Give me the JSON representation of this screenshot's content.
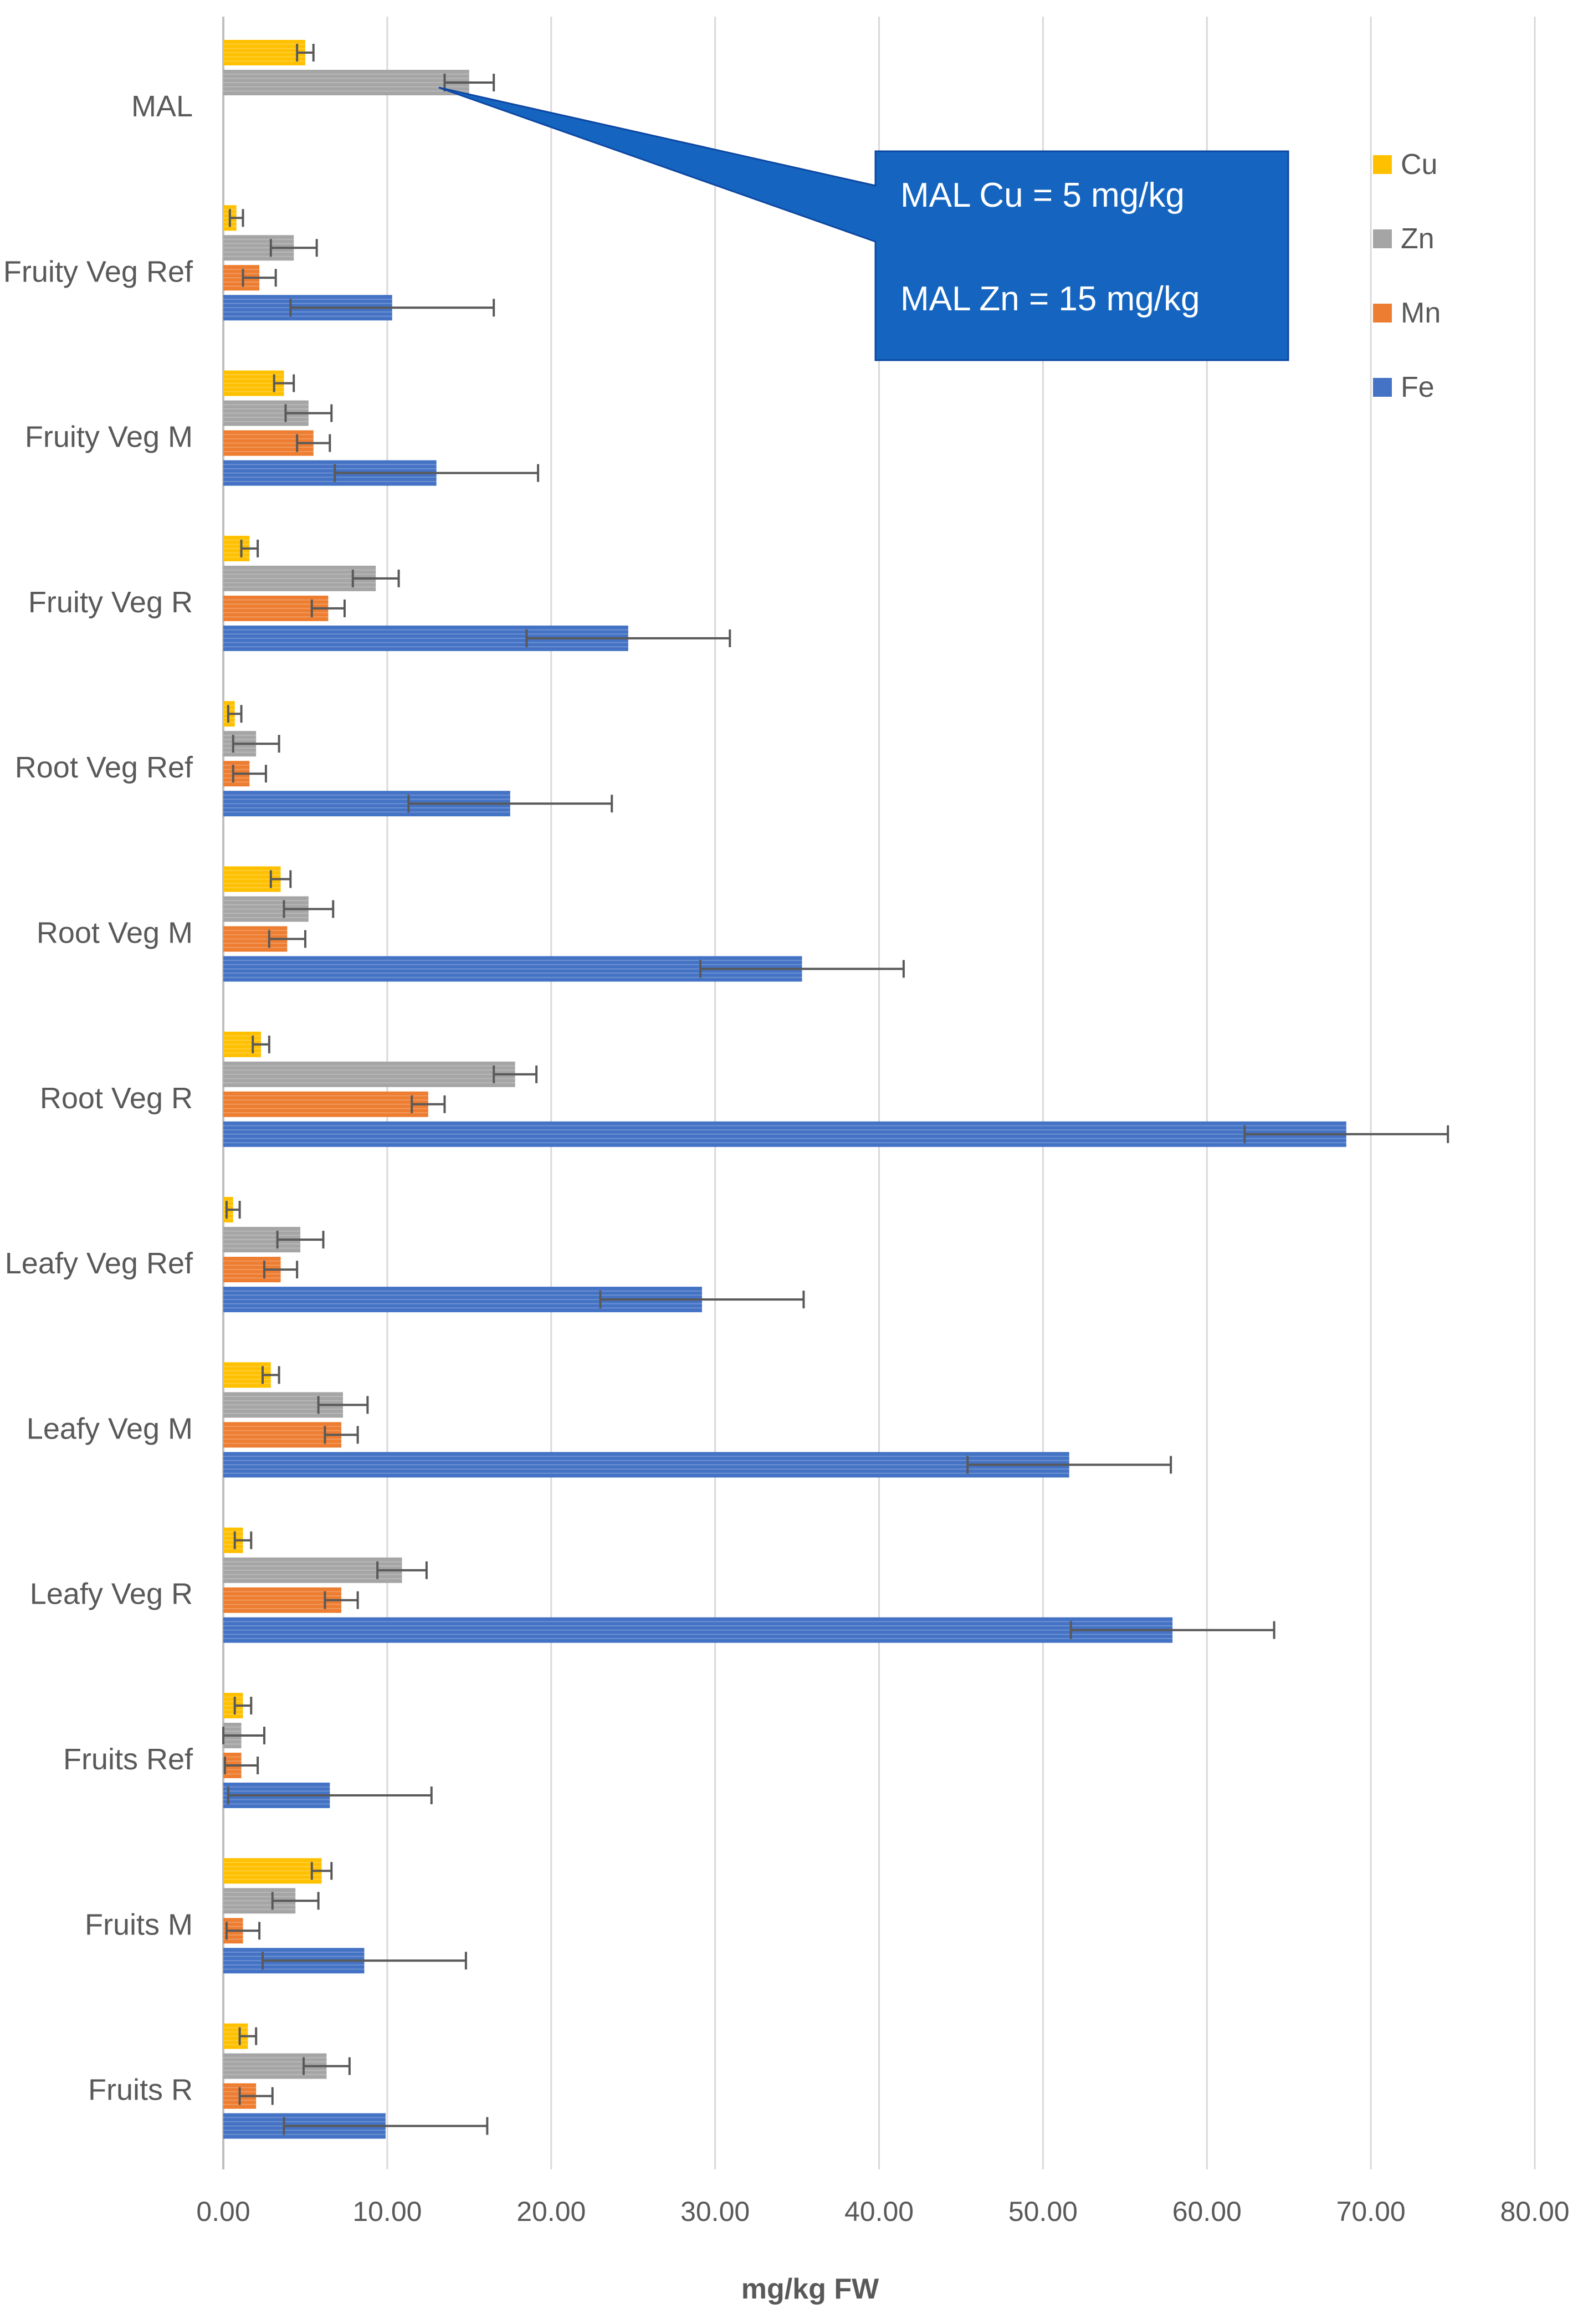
{
  "chart_data": {
    "type": "bar",
    "orientation": "horizontal",
    "title": "",
    "xlabel": "mg/kg FW",
    "ylabel": "",
    "xlim": [
      0,
      80
    ],
    "x_ticks": [
      "0.00",
      "10.00",
      "20.00",
      "30.00",
      "40.00",
      "50.00",
      "60.00",
      "70.00",
      "80.00"
    ],
    "x_tick_values": [
      0,
      10,
      20,
      30,
      40,
      50,
      60,
      70,
      80
    ],
    "grid": "vertical",
    "legend_position": "top-right",
    "categories": [
      "MAL",
      "Fruity Veg Ref",
      "Fruity Veg M",
      "Fruity Veg R",
      "Root Veg Ref",
      "Root Veg M",
      "Root Veg R",
      "Leafy Veg Ref",
      "Leafy Veg M",
      "Leafy Veg R",
      "Fruits Ref",
      "Fruits M",
      "Fruits R"
    ],
    "series": [
      {
        "name": "Cu",
        "color": "#FFC000",
        "values": [
          5.0,
          0.8,
          3.7,
          1.6,
          0.7,
          3.5,
          2.3,
          0.6,
          2.9,
          1.2,
          1.2,
          6.0,
          1.5
        ],
        "errors": [
          0.5,
          0.4,
          0.6,
          0.5,
          0.4,
          0.6,
          0.5,
          0.4,
          0.5,
          0.5,
          0.5,
          0.6,
          0.5
        ]
      },
      {
        "name": "Zn",
        "color": "#A5A5A5",
        "values": [
          15.0,
          4.3,
          5.2,
          9.3,
          2.0,
          5.2,
          17.8,
          4.7,
          7.3,
          10.9,
          1.1,
          4.4,
          6.3
        ],
        "errors": [
          1.5,
          1.4,
          1.4,
          1.4,
          1.4,
          1.5,
          1.3,
          1.4,
          1.5,
          1.5,
          1.4,
          1.4,
          1.4
        ]
      },
      {
        "name": "Mn",
        "color": "#ED7D31",
        "values": [
          null,
          2.2,
          5.5,
          6.4,
          1.6,
          3.9,
          12.5,
          3.5,
          7.2,
          7.2,
          1.1,
          1.2,
          2.0
        ],
        "errors": [
          null,
          1.0,
          1.0,
          1.0,
          1.0,
          1.1,
          1.0,
          1.0,
          1.0,
          1.0,
          1.0,
          1.0,
          1.0
        ]
      },
      {
        "name": "Fe",
        "color": "#4472C4",
        "values": [
          null,
          10.3,
          13.0,
          24.7,
          17.5,
          35.3,
          68.5,
          29.2,
          51.6,
          57.9,
          6.5,
          8.6,
          9.9
        ],
        "errors": [
          null,
          6.2,
          6.2,
          6.2,
          6.2,
          6.2,
          6.2,
          6.2,
          6.2,
          6.2,
          6.2,
          6.2,
          6.2
        ]
      }
    ],
    "annotation": {
      "lines": [
        "MAL Cu = 5 mg/kg",
        "MAL Zn =  15 mg/kg"
      ],
      "color": "#1565C0"
    }
  }
}
